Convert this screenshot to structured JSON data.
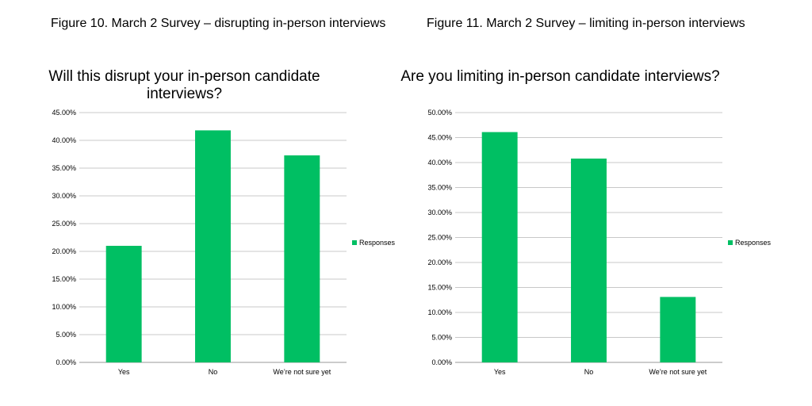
{
  "figures": [
    {
      "caption": "Figure 10. March 2 Survey – disrupting in-person interviews"
    },
    {
      "caption": "Figure 11. March 2 Survey – limiting in-person interviews"
    }
  ],
  "chart_data": [
    {
      "type": "bar",
      "title": "Will this disrupt your in-person candidate interviews?",
      "categories": [
        "Yes",
        "No",
        "We’re not sure yet"
      ],
      "series": [
        {
          "name": "Responses",
          "values": [
            21.0,
            41.8,
            37.3
          ]
        }
      ],
      "ylim": [
        0,
        45
      ],
      "yticks": [
        "0.00%",
        "5.00%",
        "10.00%",
        "15.00%",
        "20.00%",
        "25.00%",
        "30.00%",
        "35.00%",
        "40.00%",
        "45.00%"
      ],
      "xlabel": "",
      "ylabel": "",
      "grid": true,
      "legend": "right",
      "color": "#00BF63"
    },
    {
      "type": "bar",
      "title": "Are you limiting in-person candidate interviews?",
      "categories": [
        "Yes",
        "No",
        "We’re not sure yet"
      ],
      "series": [
        {
          "name": "Responses",
          "values": [
            46.1,
            40.8,
            13.1
          ]
        }
      ],
      "ylim": [
        0,
        50
      ],
      "yticks": [
        "0.00%",
        "5.00%",
        "10.00%",
        "15.00%",
        "20.00%",
        "25.00%",
        "30.00%",
        "35.00%",
        "40.00%",
        "45.00%",
        "50.00%"
      ],
      "xlabel": "",
      "ylabel": "",
      "grid": true,
      "legend": "right",
      "color": "#00BF63"
    }
  ]
}
